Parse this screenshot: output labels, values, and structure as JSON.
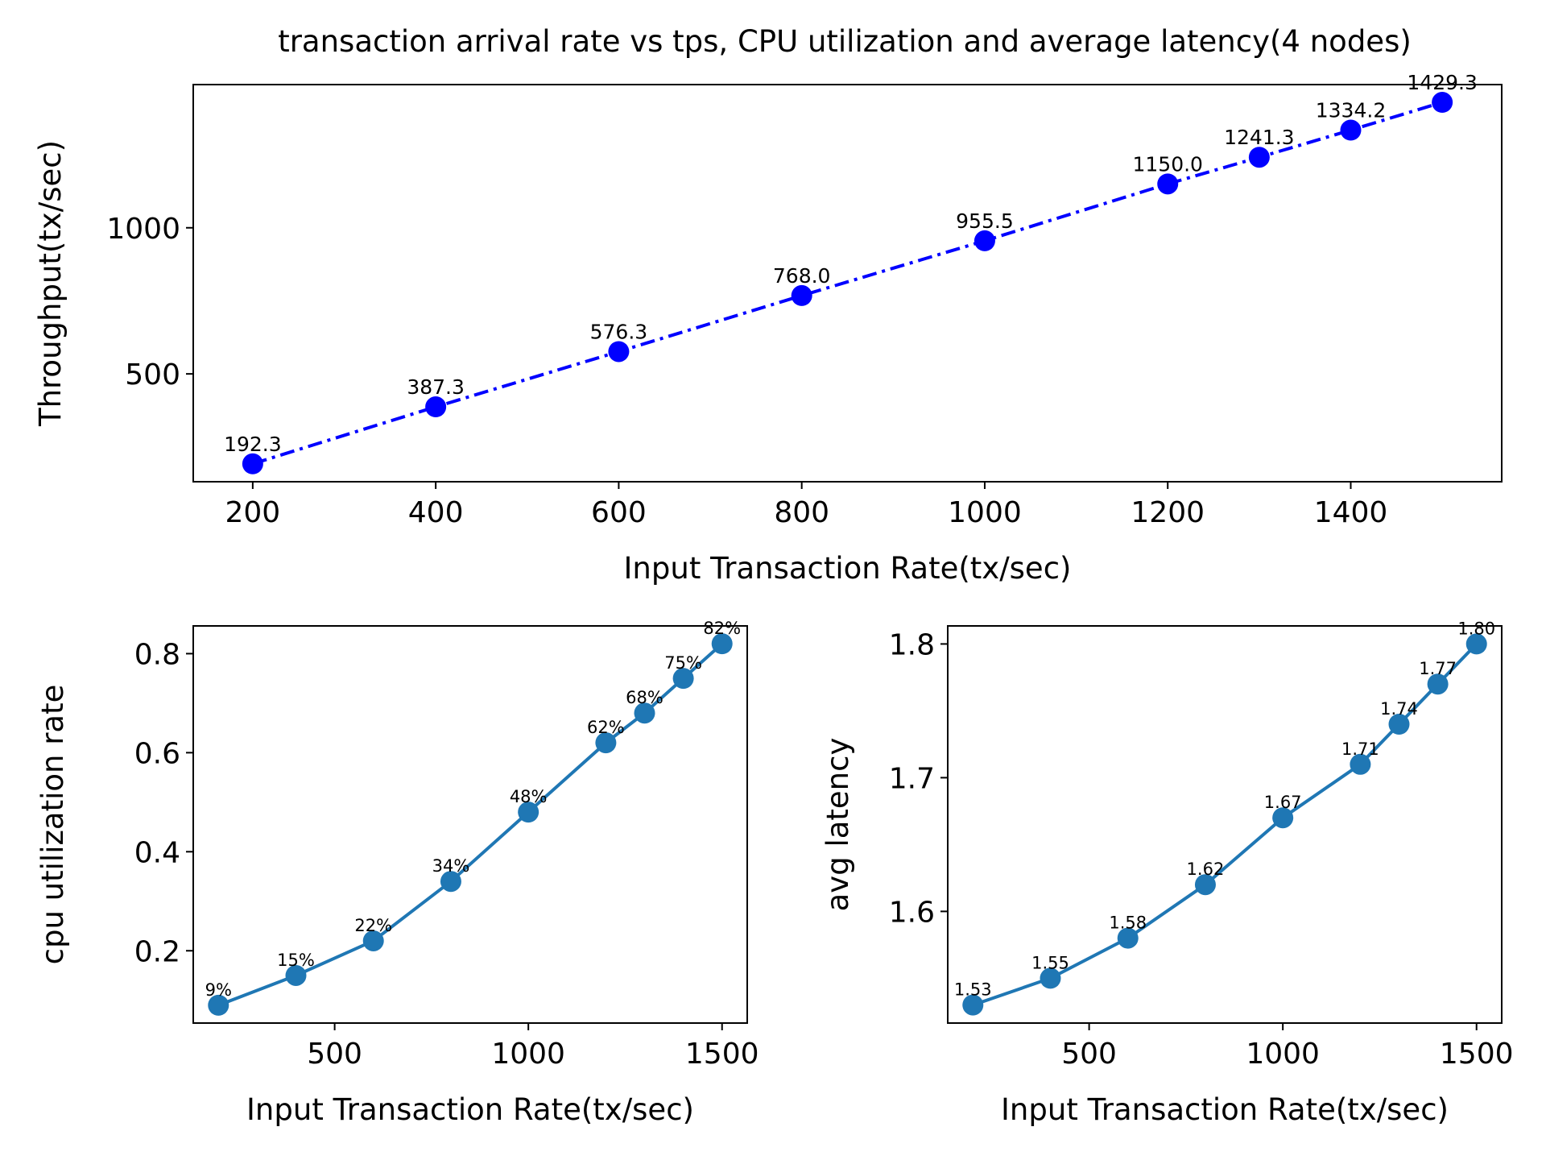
{
  "chart_data": [
    {
      "id": "throughput",
      "type": "line",
      "title": "transaction arrival rate vs tps, CPU utilization and average latency(4 nodes)",
      "xlabel": "Input Transaction Rate(tx/sec)",
      "ylabel": "Throughput(tx/sec)",
      "x": [
        200,
        400,
        600,
        800,
        1000,
        1200,
        1300,
        1400,
        1500
      ],
      "values": [
        192.3,
        387.3,
        576.3,
        768.0,
        955.5,
        1150.0,
        1241.3,
        1334.2,
        1429.3
      ],
      "labels": [
        "192.3",
        "387.3",
        "576.3",
        "768.0",
        "955.5",
        "1150.0",
        "1241.3",
        "1334.2",
        "1429.3"
      ],
      "xlim": [
        135,
        1565
      ],
      "ylim": [
        131,
        1490
      ],
      "xticks": [
        200,
        400,
        600,
        800,
        1000,
        1200,
        1400
      ],
      "xtick_labels": [
        "200",
        "400",
        "600",
        "800",
        "1000",
        "1200",
        "1400"
      ],
      "yticks": [
        500,
        1000
      ],
      "ytick_labels": [
        "500",
        "1000"
      ],
      "line_style": "dashdot",
      "color": "#0000ff"
    },
    {
      "id": "cpu",
      "type": "line",
      "xlabel": "Input Transaction Rate(tx/sec)",
      "ylabel": "cpu utilization rate",
      "x": [
        200,
        400,
        600,
        800,
        1000,
        1200,
        1300,
        1400,
        1500
      ],
      "values": [
        0.09,
        0.15,
        0.22,
        0.34,
        0.48,
        0.62,
        0.68,
        0.75,
        0.82
      ],
      "labels": [
        "9%",
        "15%",
        "22%",
        "34%",
        "48%",
        "62%",
        "68%",
        "75%",
        "82%"
      ],
      "xlim": [
        135,
        1565
      ],
      "ylim": [
        0.054,
        0.856
      ],
      "xticks": [
        500,
        1000,
        1500
      ],
      "xtick_labels": [
        "500",
        "1000",
        "1500"
      ],
      "yticks": [
        0.2,
        0.4,
        0.6,
        0.8
      ],
      "ytick_labels": [
        "0.2",
        "0.4",
        "0.6",
        "0.8"
      ],
      "color": "#1f77b4"
    },
    {
      "id": "latency",
      "type": "line",
      "xlabel": "Input Transaction Rate(tx/sec)",
      "ylabel": "avg latency",
      "x": [
        200,
        400,
        600,
        800,
        1000,
        1200,
        1300,
        1400,
        1500
      ],
      "values": [
        1.53,
        1.55,
        1.58,
        1.62,
        1.67,
        1.71,
        1.74,
        1.77,
        1.8
      ],
      "labels": [
        "1.53",
        "1.55",
        "1.58",
        "1.62",
        "1.67",
        "1.71",
        "1.74",
        "1.77",
        "1.80"
      ],
      "xlim": [
        135,
        1565
      ],
      "ylim": [
        1.5165,
        1.8135
      ],
      "xticks": [
        500,
        1000,
        1500
      ],
      "xtick_labels": [
        "500",
        "1000",
        "1500"
      ],
      "yticks": [
        1.6,
        1.7,
        1.8
      ],
      "ytick_labels": [
        "1.6",
        "1.7",
        "1.8"
      ],
      "color": "#1f77b4"
    }
  ]
}
